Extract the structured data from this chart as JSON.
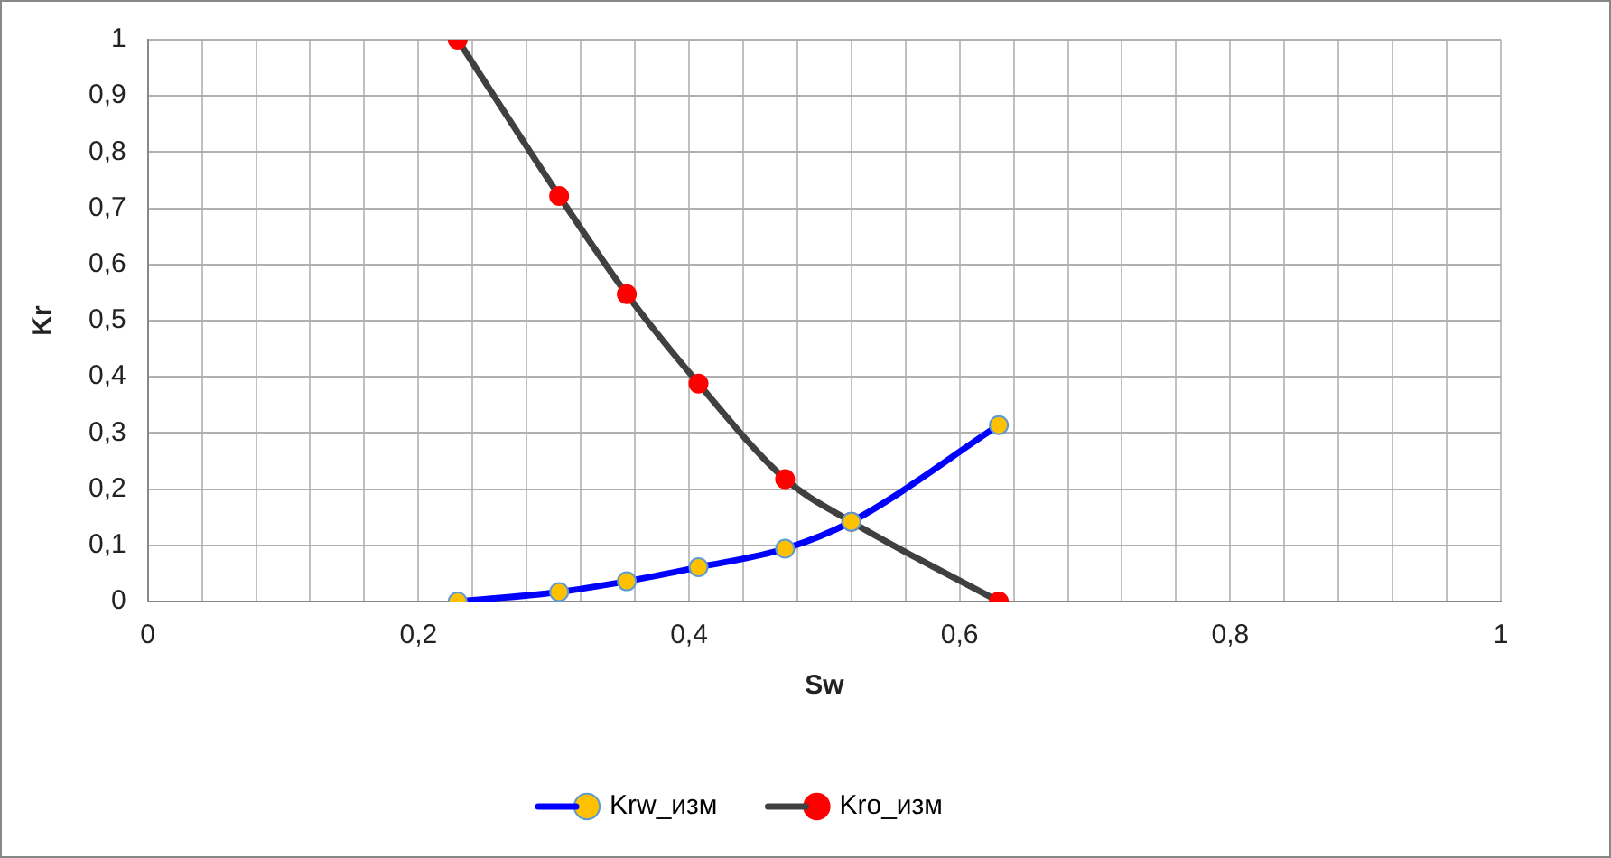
{
  "chart_data": {
    "type": "line",
    "xlabel": "Sw",
    "ylabel": "Kr",
    "xlim": [
      0,
      1
    ],
    "ylim": [
      0,
      1
    ],
    "xticks": [
      0,
      {
        "value": 0.04,
        "label": null
      },
      {
        "value": 0.08,
        "label": null
      },
      {
        "value": 0.12,
        "label": null
      },
      {
        "value": 0.16,
        "label": null
      },
      {
        "value": 0.2,
        "label": "0,2"
      },
      {
        "value": 0.24,
        "label": null
      },
      {
        "value": 0.28,
        "label": null
      },
      {
        "value": 0.32,
        "label": null
      },
      {
        "value": 0.36,
        "label": null
      },
      {
        "value": 0.4,
        "label": "0,4"
      },
      {
        "value": 0.44,
        "label": null
      },
      {
        "value": 0.48,
        "label": null
      },
      {
        "value": 0.52,
        "label": null
      },
      {
        "value": 0.56,
        "label": null
      },
      {
        "value": 0.6,
        "label": "0,6"
      },
      {
        "value": 0.64,
        "label": null
      },
      {
        "value": 0.68,
        "label": null
      },
      {
        "value": 0.72,
        "label": null
      },
      {
        "value": 0.76,
        "label": null
      },
      {
        "value": 0.8,
        "label": "0,8"
      },
      {
        "value": 0.84,
        "label": null
      },
      {
        "value": 0.88,
        "label": null
      },
      {
        "value": 0.92,
        "label": null
      },
      {
        "value": 0.96,
        "label": null
      },
      1
    ],
    "yticks": [
      0,
      {
        "value": 0.1,
        "label": "0,1"
      },
      {
        "value": 0.2,
        "label": "0,2"
      },
      {
        "value": 0.3,
        "label": "0,3"
      },
      {
        "value": 0.4,
        "label": "0,4"
      },
      {
        "value": 0.5,
        "label": "0,5"
      },
      {
        "value": 0.6,
        "label": "0,6"
      },
      {
        "value": 0.7,
        "label": "0,7"
      },
      {
        "value": 0.8,
        "label": "0,8"
      },
      {
        "value": 0.9,
        "label": "0,9"
      },
      1
    ],
    "grid": true,
    "legend": "bottom",
    "marker": "circle",
    "line_style": "solid",
    "series": [
      {
        "name": "Krw_изм",
        "color": "#0000ff",
        "x": [
          0.229,
          0.304,
          0.354,
          0.407,
          0.471,
          0.52,
          0.629
        ],
        "values": [
          0,
          0.017,
          0.036,
          0.061,
          0.094,
          0.142,
          0.314
        ]
      },
      {
        "name": "Kro_изм",
        "color": "#404040",
        "x": [
          0.229,
          0.304,
          0.354,
          0.407,
          0.471,
          0.52,
          0.629
        ],
        "values": [
          1,
          0.722,
          0.547,
          0.388,
          0.218,
          0.142,
          0
        ]
      }
    ]
  }
}
